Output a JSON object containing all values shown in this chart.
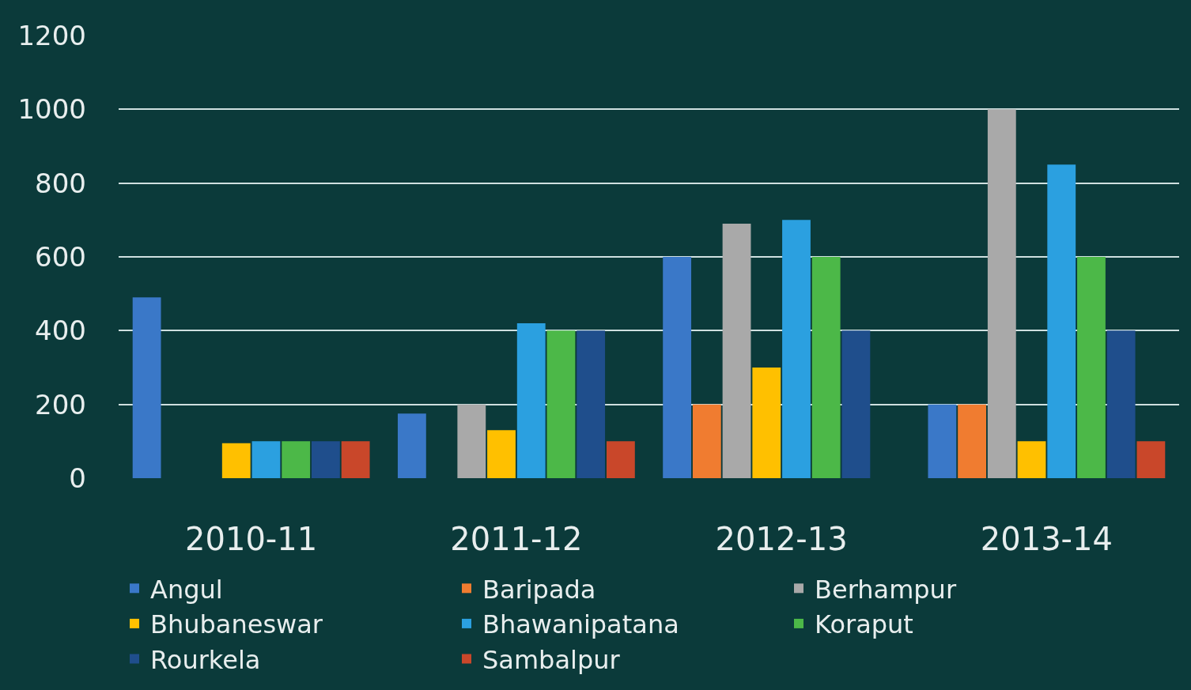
{
  "chart_data": {
    "type": "bar",
    "categories": [
      "2010-11",
      "2011-12",
      "2012-13",
      "2013-14"
    ],
    "series": [
      {
        "name": "Angul",
        "color": "#3a78c8",
        "values": [
          490,
          175,
          600,
          200
        ]
      },
      {
        "name": "Baripada",
        "color": "#f07c30",
        "values": [
          0,
          0,
          200,
          200
        ]
      },
      {
        "name": "Berhampur",
        "color": "#a9a9a9",
        "values": [
          0,
          200,
          690,
          1000
        ]
      },
      {
        "name": "Bhubaneswar",
        "color": "#ffc000",
        "values": [
          95,
          130,
          300,
          100
        ]
      },
      {
        "name": "Bhawanipatana",
        "color": "#2ba0e0",
        "values": [
          100,
          420,
          700,
          850
        ]
      },
      {
        "name": "Koraput",
        "color": "#4cb848",
        "values": [
          100,
          400,
          600,
          600
        ]
      },
      {
        "name": "Rourkela",
        "color": "#1f4e8c",
        "values": [
          100,
          400,
          400,
          400
        ]
      },
      {
        "name": "Sambalpur",
        "color": "#c9472a",
        "values": [
          100,
          100,
          0,
          100
        ]
      }
    ],
    "ylim": [
      0,
      1200
    ],
    "yticks": [
      0,
      200,
      400,
      600,
      800,
      1000,
      1200
    ],
    "grid": "y",
    "legend": "bottom"
  }
}
